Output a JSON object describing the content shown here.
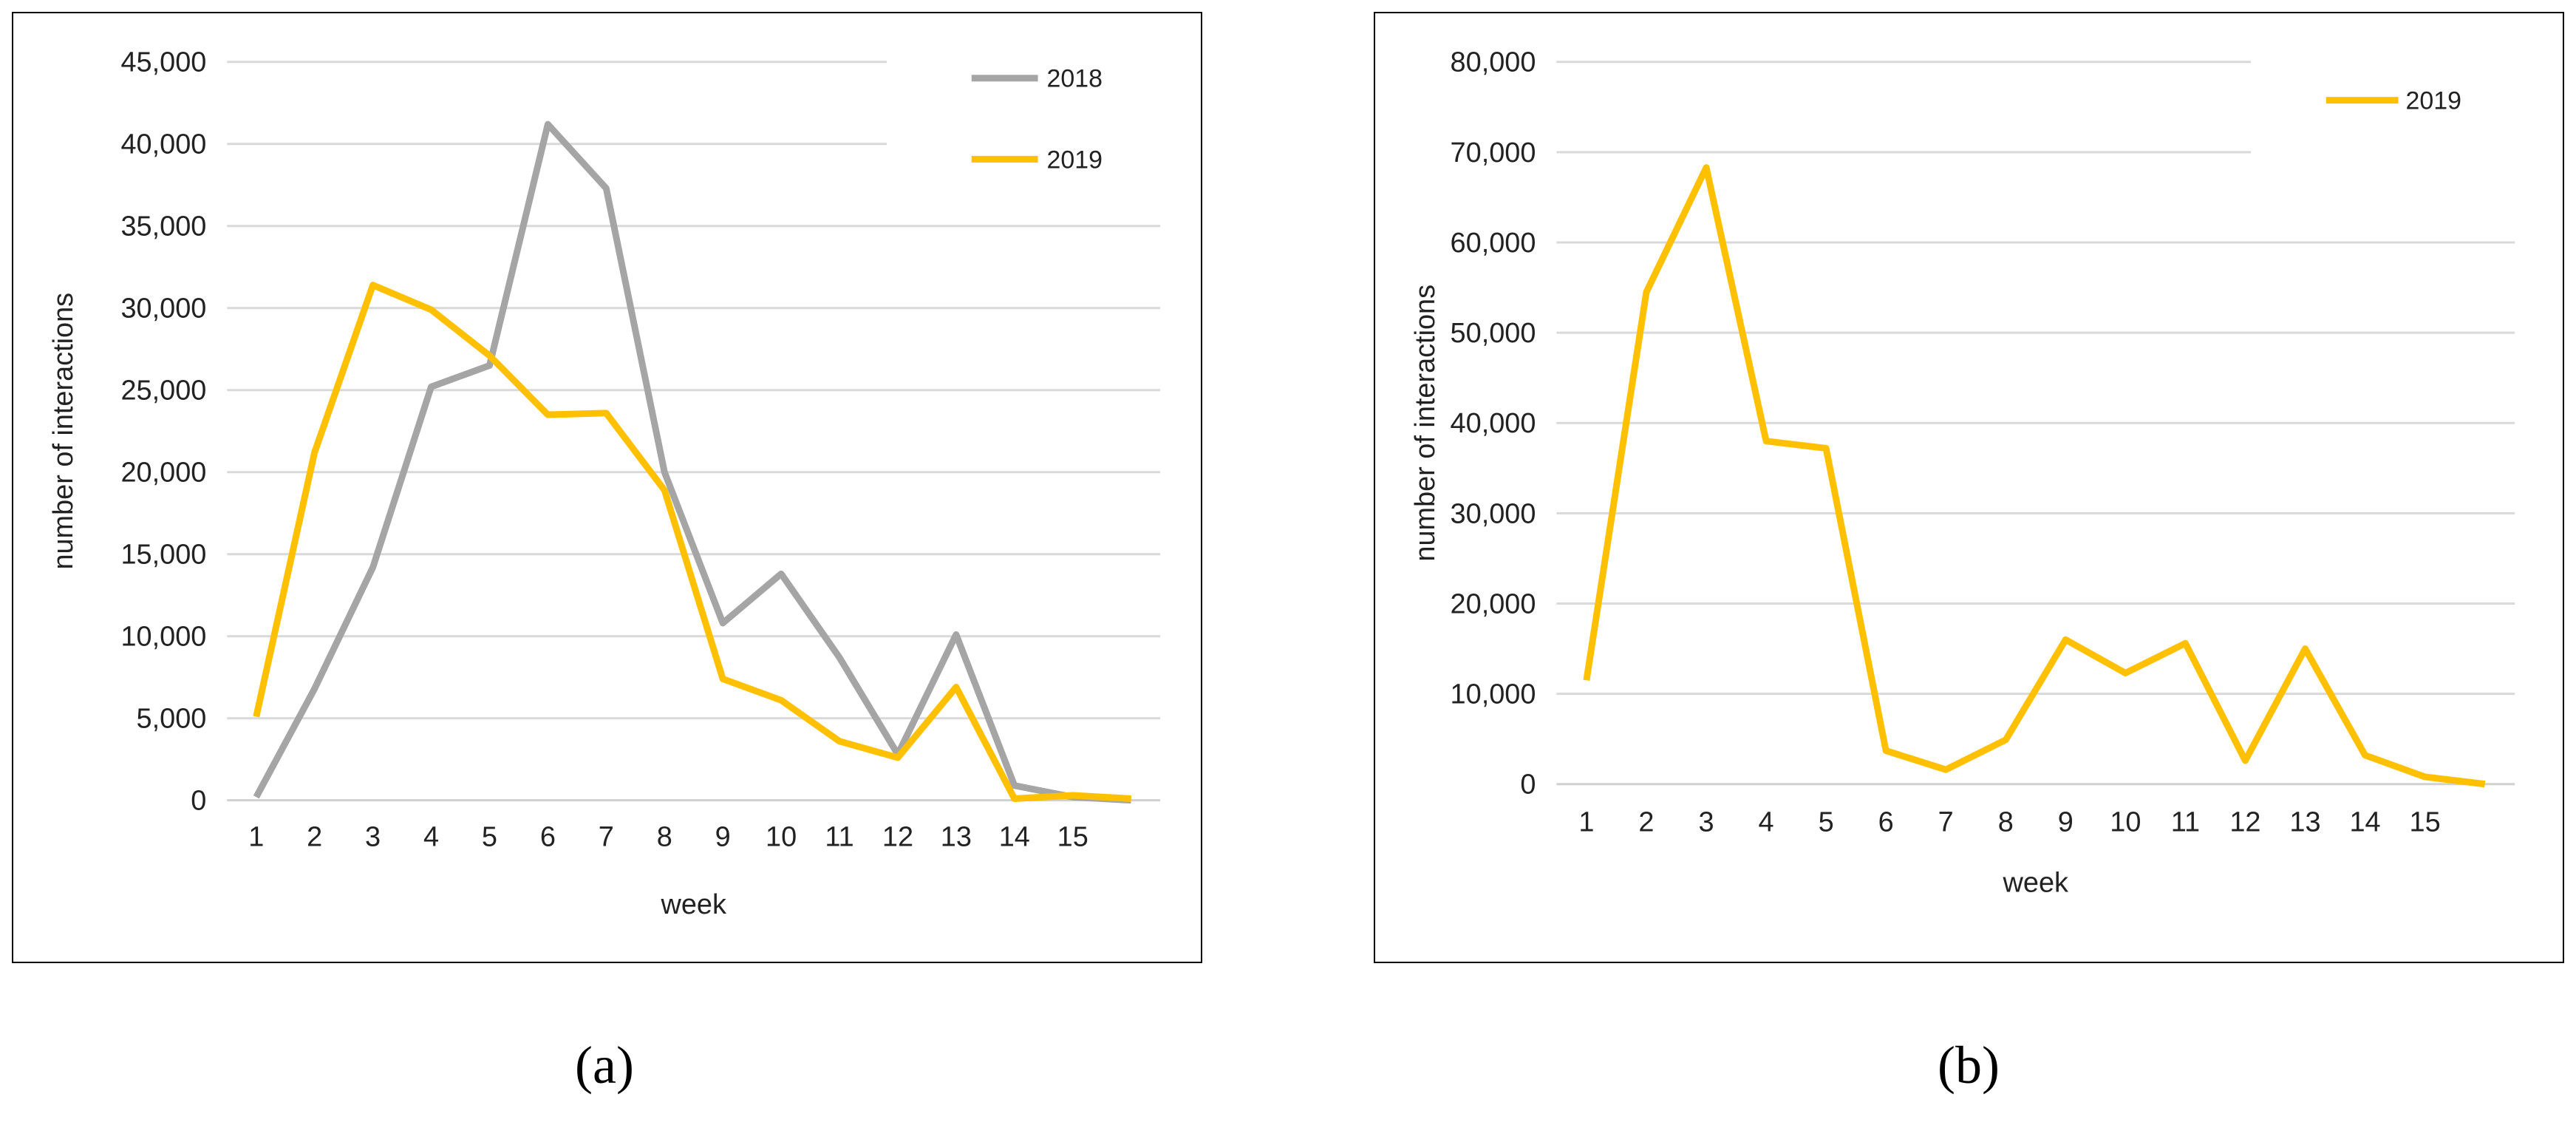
{
  "chart_data": [
    {
      "type": "line",
      "panel_label": "(a)",
      "xlabel": "week",
      "ylabel": "number of interactions",
      "x_tick_labels": [
        "1",
        "2",
        "3",
        "4",
        "5",
        "6",
        "7",
        "8",
        "9",
        "10",
        "11",
        "12",
        "13",
        "14",
        "15"
      ],
      "y_tick_labels": [
        "0",
        "5,000",
        "10,000",
        "15,000",
        "20,000",
        "25,000",
        "30,000",
        "35,000",
        "40,000",
        "45,000"
      ],
      "ylim": [
        0,
        45000
      ],
      "grid": "horizontal",
      "legend_position": "top-right",
      "x": [
        1,
        2,
        3,
        4,
        5,
        6,
        7,
        8,
        9,
        10,
        11,
        12,
        13,
        14,
        15,
        16
      ],
      "series": [
        {
          "name": "2018",
          "color": "#A5A5A5",
          "values": [
            200,
            6800,
            14200,
            25200,
            26500,
            41200,
            37300,
            20000,
            10800,
            13800,
            8700,
            2800,
            10100,
            900,
            200,
            0
          ]
        },
        {
          "name": "2019",
          "color": "#FFC000",
          "values": [
            5100,
            21200,
            31400,
            29900,
            27100,
            23500,
            23600,
            18900,
            7400,
            6100,
            3600,
            2600,
            6900,
            100,
            300,
            100
          ]
        }
      ]
    },
    {
      "type": "line",
      "panel_label": "(b)",
      "xlabel": "week",
      "ylabel": "number of interactions",
      "x_tick_labels": [
        "1",
        "2",
        "3",
        "4",
        "5",
        "6",
        "7",
        "8",
        "9",
        "10",
        "11",
        "12",
        "13",
        "14",
        "15"
      ],
      "y_tick_labels": [
        "0",
        "10,000",
        "20,000",
        "30,000",
        "40,000",
        "50,000",
        "60,000",
        "70,000",
        "80,000"
      ],
      "ylim": [
        0,
        80000
      ],
      "grid": "horizontal",
      "legend_position": "top-right",
      "x": [
        1,
        2,
        3,
        4,
        5,
        6,
        7,
        8,
        9,
        10,
        11,
        12,
        13,
        14,
        15,
        16
      ],
      "series": [
        {
          "name": "2019",
          "color": "#FFC000",
          "values": [
            11500,
            54500,
            68300,
            38000,
            37200,
            3700,
            1600,
            4900,
            16000,
            12300,
            15600,
            2600,
            15000,
            3200,
            800,
            0
          ]
        }
      ]
    }
  ]
}
